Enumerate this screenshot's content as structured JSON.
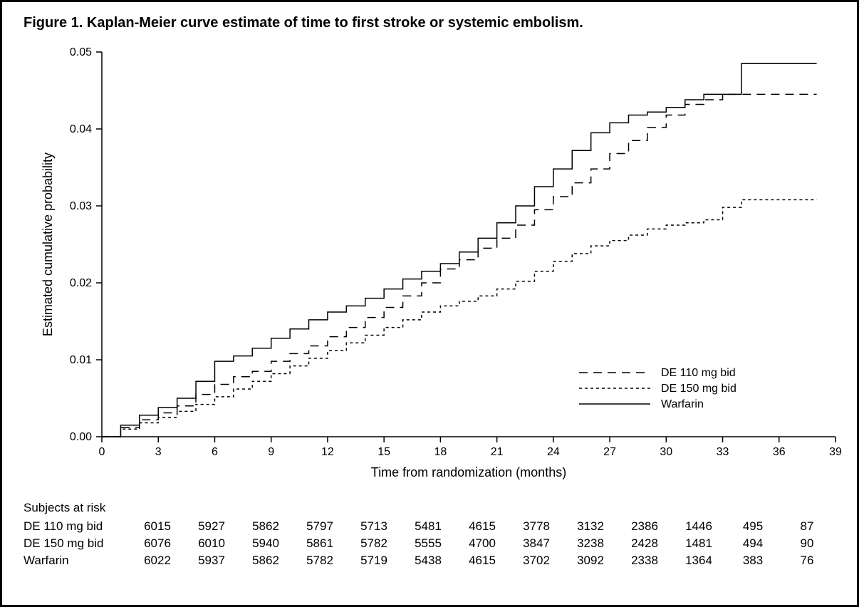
{
  "title": "Figure 1.   Kaplan-Meier curve estimate of time to first stroke or systemic embolism.",
  "chart": {
    "type": "line",
    "xlabel": "Time from randomization (months)",
    "ylabel": "Estimated cumulative probability",
    "xlim": [
      0,
      39
    ],
    "ylim": [
      0,
      0.05
    ],
    "xtick_step": 3,
    "xticks": [
      0,
      3,
      6,
      9,
      12,
      15,
      18,
      21,
      24,
      27,
      30,
      33,
      36,
      39
    ],
    "yticks": [
      0.0,
      0.01,
      0.02,
      0.03,
      0.04,
      0.05
    ],
    "ytick_labels": [
      "0.00",
      "0.01",
      "0.02",
      "0.03",
      "0.04",
      "0.05"
    ],
    "background_color": "#ffffff",
    "axis_color": "#000000",
    "text_color": "#000000",
    "line_width": 1.5,
    "series": [
      {
        "name": "DE 110 mg bid",
        "dash": "12,8",
        "color": "#000000",
        "points": [
          [
            0,
            0.0
          ],
          [
            1,
            0.0012
          ],
          [
            2,
            0.0022
          ],
          [
            3,
            0.0031
          ],
          [
            4,
            0.004
          ],
          [
            5,
            0.0055
          ],
          [
            6,
            0.0068
          ],
          [
            7,
            0.0078
          ],
          [
            8,
            0.0085
          ],
          [
            9,
            0.0098
          ],
          [
            10,
            0.0108
          ],
          [
            11,
            0.0118
          ],
          [
            12,
            0.013
          ],
          [
            13,
            0.0142
          ],
          [
            14,
            0.0155
          ],
          [
            15,
            0.0168
          ],
          [
            16,
            0.0183
          ],
          [
            17,
            0.02
          ],
          [
            18,
            0.0218
          ],
          [
            19,
            0.023
          ],
          [
            20,
            0.0245
          ],
          [
            21,
            0.0258
          ],
          [
            22,
            0.0275
          ],
          [
            23,
            0.0295
          ],
          [
            24,
            0.0312
          ],
          [
            25,
            0.033
          ],
          [
            26,
            0.0348
          ],
          [
            27,
            0.0368
          ],
          [
            28,
            0.0385
          ],
          [
            29,
            0.0402
          ],
          [
            30,
            0.0418
          ],
          [
            31,
            0.0432
          ],
          [
            32,
            0.0438
          ],
          [
            33,
            0.0445
          ],
          [
            34,
            0.0445
          ],
          [
            35,
            0.0445
          ],
          [
            36,
            0.0445
          ],
          [
            37,
            0.0445
          ],
          [
            38,
            0.0445
          ]
        ]
      },
      {
        "name": "DE 150 mg bid",
        "dash": "4,4",
        "color": "#000000",
        "points": [
          [
            0,
            0.0
          ],
          [
            1,
            0.001
          ],
          [
            2,
            0.0018
          ],
          [
            3,
            0.0025
          ],
          [
            4,
            0.0033
          ],
          [
            5,
            0.0042
          ],
          [
            6,
            0.0052
          ],
          [
            7,
            0.0062
          ],
          [
            8,
            0.0072
          ],
          [
            9,
            0.0082
          ],
          [
            10,
            0.0092
          ],
          [
            11,
            0.0102
          ],
          [
            12,
            0.0112
          ],
          [
            13,
            0.0122
          ],
          [
            14,
            0.0132
          ],
          [
            15,
            0.0142
          ],
          [
            16,
            0.0152
          ],
          [
            17,
            0.0162
          ],
          [
            18,
            0.017
          ],
          [
            19,
            0.0176
          ],
          [
            20,
            0.0183
          ],
          [
            21,
            0.0192
          ],
          [
            22,
            0.0202
          ],
          [
            23,
            0.0215
          ],
          [
            24,
            0.0228
          ],
          [
            25,
            0.0238
          ],
          [
            26,
            0.0248
          ],
          [
            27,
            0.0255
          ],
          [
            28,
            0.0262
          ],
          [
            29,
            0.027
          ],
          [
            30,
            0.0275
          ],
          [
            31,
            0.0278
          ],
          [
            32,
            0.0282
          ],
          [
            33,
            0.0298
          ],
          [
            34,
            0.0308
          ],
          [
            35,
            0.0308
          ],
          [
            36,
            0.0308
          ],
          [
            37,
            0.0308
          ],
          [
            38,
            0.0308
          ]
        ]
      },
      {
        "name": "Warfarin",
        "dash": "none",
        "color": "#000000",
        "points": [
          [
            0,
            0.0
          ],
          [
            1,
            0.0015
          ],
          [
            2,
            0.0028
          ],
          [
            3,
            0.0038
          ],
          [
            4,
            0.005
          ],
          [
            5,
            0.0072
          ],
          [
            6,
            0.0098
          ],
          [
            7,
            0.0105
          ],
          [
            8,
            0.0115
          ],
          [
            9,
            0.0128
          ],
          [
            10,
            0.014
          ],
          [
            11,
            0.0152
          ],
          [
            12,
            0.0162
          ],
          [
            13,
            0.017
          ],
          [
            14,
            0.018
          ],
          [
            15,
            0.0192
          ],
          [
            16,
            0.0205
          ],
          [
            17,
            0.0215
          ],
          [
            18,
            0.0225
          ],
          [
            19,
            0.024
          ],
          [
            20,
            0.0258
          ],
          [
            21,
            0.0278
          ],
          [
            22,
            0.03
          ],
          [
            23,
            0.0325
          ],
          [
            24,
            0.0348
          ],
          [
            25,
            0.0372
          ],
          [
            26,
            0.0395
          ],
          [
            27,
            0.0408
          ],
          [
            28,
            0.0418
          ],
          [
            29,
            0.0422
          ],
          [
            30,
            0.0428
          ],
          [
            31,
            0.0438
          ],
          [
            32,
            0.0445
          ],
          [
            33,
            0.0445
          ],
          [
            34,
            0.0485
          ],
          [
            35,
            0.0485
          ],
          [
            36,
            0.0485
          ],
          [
            37,
            0.0485
          ],
          [
            38,
            0.0485
          ]
        ]
      }
    ],
    "legend": {
      "position": "bottom-right",
      "items": [
        {
          "label": "DE 110 mg bid",
          "dash": "12,8"
        },
        {
          "label": "DE 150 mg bid",
          "dash": "4,4"
        },
        {
          "label": "Warfarin",
          "dash": "none"
        }
      ]
    }
  },
  "risk_table": {
    "title": "Subjects at risk",
    "time_points": [
      0,
      3,
      6,
      9,
      12,
      15,
      18,
      21,
      24,
      27,
      30,
      33,
      36
    ],
    "rows": [
      {
        "label": "DE 110 mg bid",
        "values": [
          6015,
          5927,
          5862,
          5797,
          5713,
          5481,
          4615,
          3778,
          3132,
          2386,
          1446,
          495,
          87
        ]
      },
      {
        "label": "DE 150 mg bid",
        "values": [
          6076,
          6010,
          5940,
          5861,
          5782,
          5555,
          4700,
          3847,
          3238,
          2428,
          1481,
          494,
          90
        ]
      },
      {
        "label": "Warfarin",
        "values": [
          6022,
          5937,
          5862,
          5782,
          5719,
          5438,
          4615,
          3702,
          3092,
          2338,
          1364,
          383,
          76
        ]
      }
    ]
  }
}
